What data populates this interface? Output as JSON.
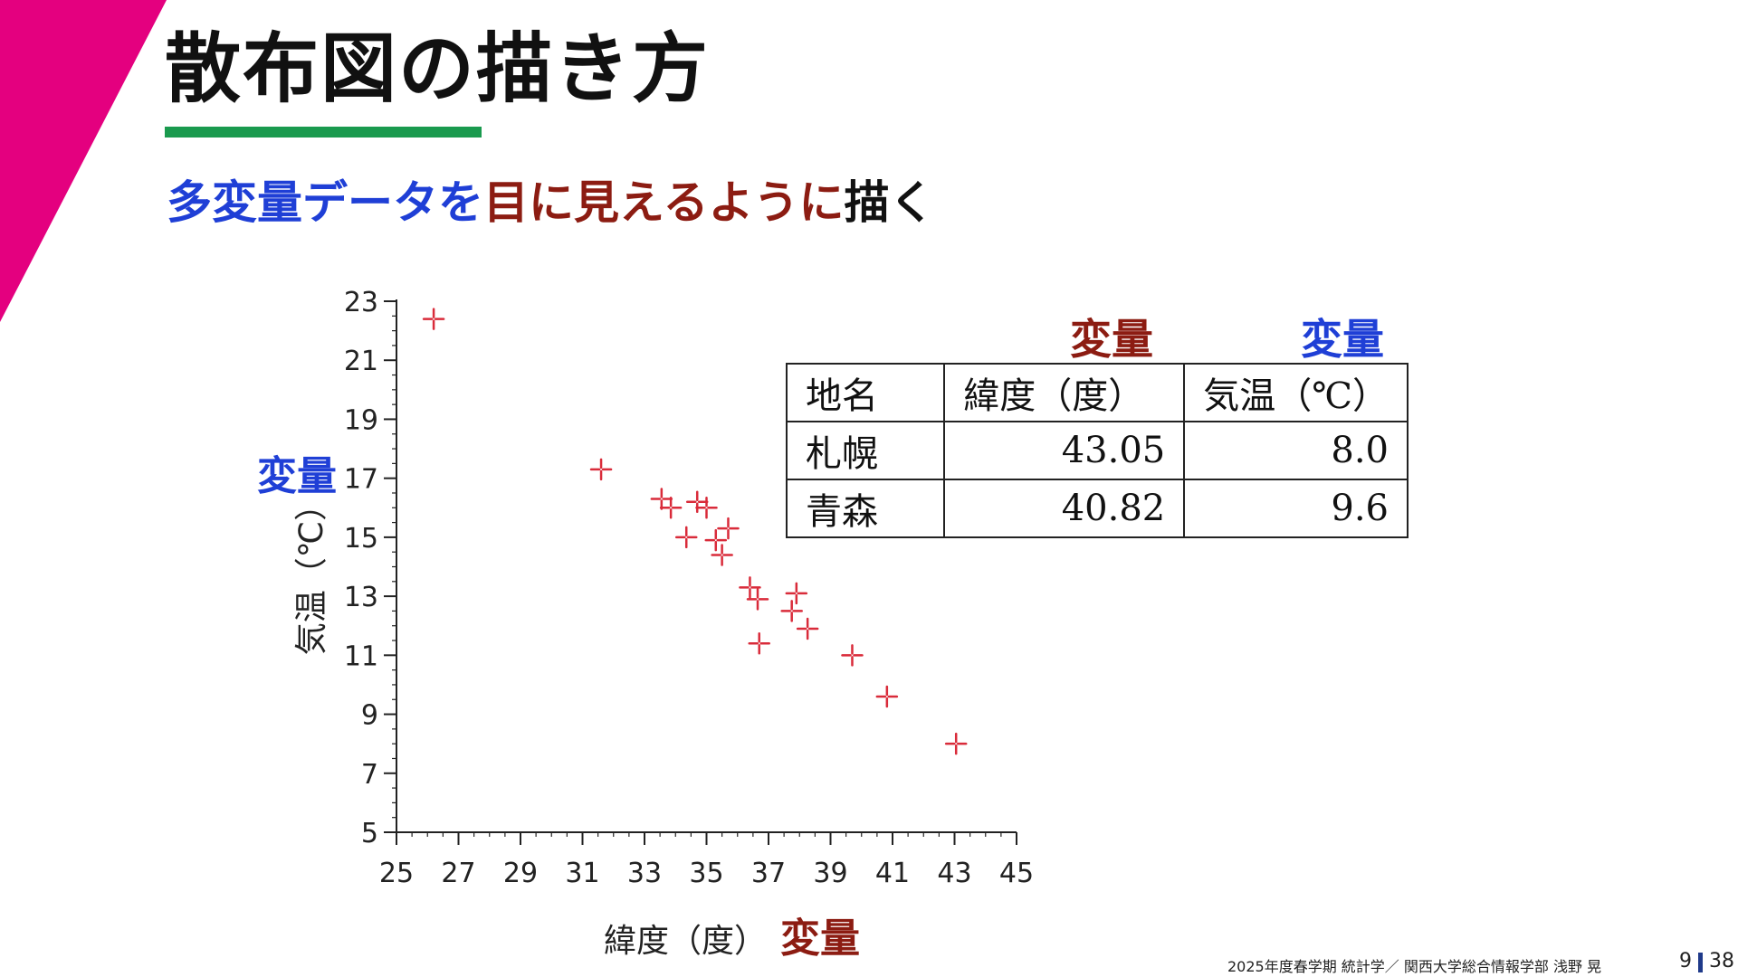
{
  "slide": {
    "title": "散布図の描き方",
    "subtitle": {
      "part1": "多変量データを",
      "part2": "目に見えるように",
      "part3": "描く"
    },
    "footer": "2025年度春学期 統計学／ 関西大学総合情報学部 浅野 晃",
    "page": "9",
    "total": "38"
  },
  "colors": {
    "accent_magenta": "#e4007f",
    "underline_green": "#1a9a4e",
    "variable_blue": "#1f3fd6",
    "variable_red": "#8c1c12",
    "marker_red": "#d92b3a"
  },
  "table": {
    "variable_labels": [
      "変量",
      "変量"
    ],
    "headers": [
      "地名",
      "緯度（度）",
      "気温（℃）"
    ],
    "rows": [
      [
        "札幌",
        "43.05",
        "8.0"
      ],
      [
        "青森",
        "40.82",
        "9.6"
      ]
    ]
  },
  "chart_data": {
    "type": "scatter",
    "xlabel": "緯度（度）",
    "ylabel": "気温（℃）",
    "x_variable_label": "変量",
    "y_variable_label": "変量",
    "xlim": [
      25,
      45
    ],
    "ylim": [
      5,
      23
    ],
    "xticks": [
      25,
      27,
      29,
      31,
      33,
      35,
      37,
      39,
      41,
      43,
      45
    ],
    "yticks": [
      5,
      7,
      9,
      11,
      13,
      15,
      17,
      19,
      21,
      23
    ],
    "grid": false,
    "points": [
      {
        "x": 43.05,
        "y": 8.0
      },
      {
        "x": 40.82,
        "y": 9.6
      },
      {
        "x": 39.7,
        "y": 11.0
      },
      {
        "x": 38.26,
        "y": 11.9
      },
      {
        "x": 37.75,
        "y": 12.5
      },
      {
        "x": 37.9,
        "y": 13.1
      },
      {
        "x": 36.7,
        "y": 11.4
      },
      {
        "x": 36.65,
        "y": 12.9
      },
      {
        "x": 36.4,
        "y": 13.3
      },
      {
        "x": 35.7,
        "y": 15.3
      },
      {
        "x": 35.5,
        "y": 14.4
      },
      {
        "x": 35.3,
        "y": 14.9
      },
      {
        "x": 34.35,
        "y": 15.0
      },
      {
        "x": 35.0,
        "y": 16.0
      },
      {
        "x": 34.7,
        "y": 16.2
      },
      {
        "x": 33.85,
        "y": 16.0
      },
      {
        "x": 33.55,
        "y": 16.3
      },
      {
        "x": 31.6,
        "y": 17.3
      },
      {
        "x": 26.2,
        "y": 22.4
      }
    ]
  }
}
